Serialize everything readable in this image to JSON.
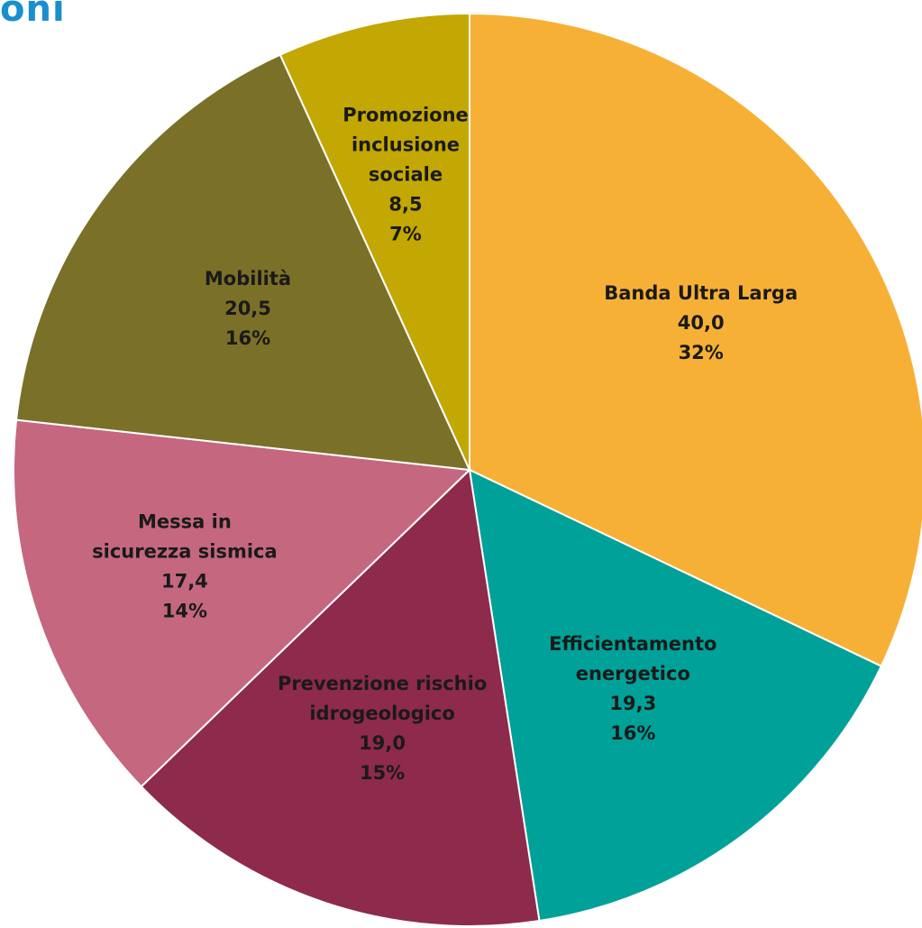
{
  "title_fragment": "oni",
  "chart_data": {
    "type": "pie",
    "title": "",
    "slices": [
      {
        "label_lines": [
          "Banda Ultra Larga"
        ],
        "value": 40.0,
        "value_text": "40,0",
        "percent": "32%",
        "color": "#f7b036"
      },
      {
        "label_lines": [
          "Efficientamento",
          "energetico"
        ],
        "value": 19.3,
        "value_text": "19,3",
        "percent": "16%",
        "color": "#00a198"
      },
      {
        "label_lines": [
          "Prevenzione rischio",
          "idrogeologico"
        ],
        "value": 19.0,
        "value_text": "19,0",
        "percent": "15%",
        "color": "#8e2a4c"
      },
      {
        "label_lines": [
          "Messa in",
          "sicurezza sismica"
        ],
        "value": 17.4,
        "value_text": "17,4",
        "percent": "14%",
        "color": "#c5677f"
      },
      {
        "label_lines": [
          "Mobilità"
        ],
        "value": 20.5,
        "value_text": "20,5",
        "percent": "16%",
        "color": "#7b7027"
      },
      {
        "label_lines": [
          "Promozione",
          "inclusione",
          "sociale"
        ],
        "value": 8.5,
        "value_text": "8,5",
        "percent": "7%",
        "color": "#c3a703"
      }
    ]
  }
}
